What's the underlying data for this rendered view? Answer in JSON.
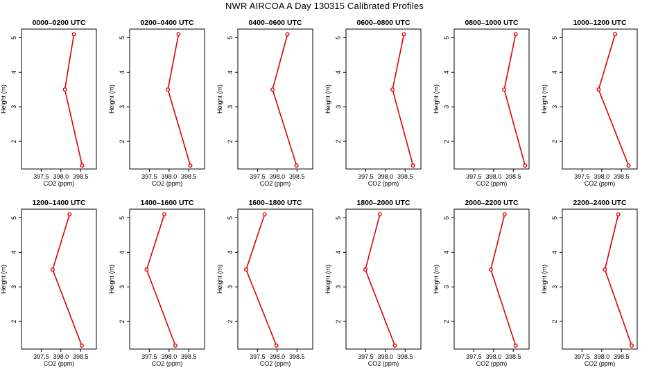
{
  "title": "NWR AIRCOA A  Day 130315  Calibrated Profiles",
  "chart_data": {
    "type": "line",
    "figure_title": "NWR AIRCOA A  Day 130315  Calibrated Profiles",
    "xlabel": "CO2 (ppm)",
    "ylabel": "Height (m)",
    "xlim": [
      397.0,
      398.9
    ],
    "ylim": [
      1.2,
      5.25
    ],
    "xticks": [
      "397.5",
      "398.0",
      "398.5"
    ],
    "yticks": [
      "2",
      "3",
      "4",
      "5"
    ],
    "heights": [
      5.1,
      3.5,
      1.3
    ],
    "color": "#dd0000",
    "panels": [
      {
        "title": "0000–0200 UTC",
        "co2": [
          398.33,
          398.1,
          398.54
        ]
      },
      {
        "title": "0200–0400 UTC",
        "co2": [
          398.24,
          397.97,
          398.54
        ]
      },
      {
        "title": "0400–0600 UTC",
        "co2": [
          398.26,
          397.88,
          398.49
        ]
      },
      {
        "title": "0600–0800 UTC",
        "co2": [
          398.47,
          398.18,
          398.7
        ]
      },
      {
        "title": "0800–1000 UTC",
        "co2": [
          398.56,
          398.27,
          398.8
        ]
      },
      {
        "title": "1000–1200 UTC",
        "co2": [
          398.34,
          397.92,
          398.68
        ]
      },
      {
        "title": "1200–1400 UTC",
        "co2": [
          398.22,
          397.79,
          398.53
        ]
      },
      {
        "title": "1400–1600 UTC",
        "co2": [
          397.88,
          397.43,
          398.16
        ]
      },
      {
        "title": "1600–1800 UTC",
        "co2": [
          397.68,
          397.21,
          397.98
        ]
      },
      {
        "title": "1800–2000 UTC",
        "co2": [
          397.86,
          397.49,
          398.24
        ]
      },
      {
        "title": "2000–2200 UTC",
        "co2": [
          398.28,
          397.93,
          398.56
        ]
      },
      {
        "title": "2200–2400 UTC",
        "co2": [
          398.42,
          398.08,
          398.76
        ]
      }
    ]
  }
}
